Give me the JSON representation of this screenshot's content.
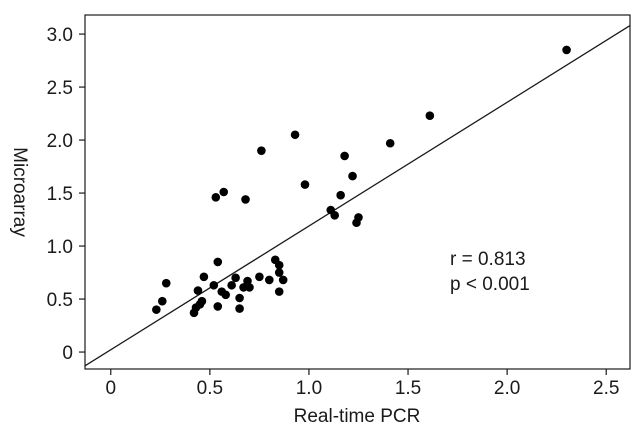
{
  "chart_data": {
    "type": "scatter",
    "xlabel": "Real-time PCR",
    "ylabel": "Microarray",
    "xlim": [
      -0.13,
      2.62
    ],
    "ylim": [
      -0.16,
      3.18
    ],
    "xticks": [
      0,
      0.5,
      1.0,
      1.5,
      2.0,
      2.5
    ],
    "xtick_labels": [
      "0",
      "0.5",
      "1.0",
      "1.5",
      "2.0",
      "2.5"
    ],
    "yticks": [
      0,
      0.5,
      1.0,
      1.5,
      2.0,
      2.5,
      3.0
    ],
    "ytick_labels": [
      "0",
      "0.5",
      "1.0",
      "1.5",
      "2.0",
      "2.5",
      "3.0"
    ],
    "grid": false,
    "reference_line": {
      "type": "identity",
      "from": [
        -0.13,
        -0.13
      ],
      "to": [
        2.62,
        3.08
      ]
    },
    "annotations": [
      "r = 0.813",
      "p < 0.001"
    ],
    "points": [
      {
        "x": 0.23,
        "y": 0.4
      },
      {
        "x": 0.26,
        "y": 0.48
      },
      {
        "x": 0.28,
        "y": 0.65
      },
      {
        "x": 0.42,
        "y": 0.37
      },
      {
        "x": 0.43,
        "y": 0.42
      },
      {
        "x": 0.44,
        "y": 0.58
      },
      {
        "x": 0.45,
        "y": 0.45
      },
      {
        "x": 0.46,
        "y": 0.48
      },
      {
        "x": 0.47,
        "y": 0.71
      },
      {
        "x": 0.52,
        "y": 0.63
      },
      {
        "x": 0.53,
        "y": 1.46
      },
      {
        "x": 0.54,
        "y": 0.85
      },
      {
        "x": 0.54,
        "y": 0.43
      },
      {
        "x": 0.56,
        "y": 0.57
      },
      {
        "x": 0.57,
        "y": 1.51
      },
      {
        "x": 0.58,
        "y": 0.54
      },
      {
        "x": 0.61,
        "y": 0.63
      },
      {
        "x": 0.63,
        "y": 0.7
      },
      {
        "x": 0.65,
        "y": 0.51
      },
      {
        "x": 0.65,
        "y": 0.41
      },
      {
        "x": 0.67,
        "y": 0.61
      },
      {
        "x": 0.68,
        "y": 1.44
      },
      {
        "x": 0.69,
        "y": 0.67
      },
      {
        "x": 0.7,
        "y": 0.61
      },
      {
        "x": 0.75,
        "y": 0.71
      },
      {
        "x": 0.76,
        "y": 1.9
      },
      {
        "x": 0.8,
        "y": 0.68
      },
      {
        "x": 0.83,
        "y": 0.87
      },
      {
        "x": 0.85,
        "y": 0.82
      },
      {
        "x": 0.85,
        "y": 0.75
      },
      {
        "x": 0.85,
        "y": 0.57
      },
      {
        "x": 0.87,
        "y": 0.68
      },
      {
        "x": 0.93,
        "y": 2.05
      },
      {
        "x": 0.98,
        "y": 1.58
      },
      {
        "x": 1.11,
        "y": 1.34
      },
      {
        "x": 1.13,
        "y": 1.29
      },
      {
        "x": 1.16,
        "y": 1.48
      },
      {
        "x": 1.18,
        "y": 1.85
      },
      {
        "x": 1.22,
        "y": 1.66
      },
      {
        "x": 1.24,
        "y": 1.22
      },
      {
        "x": 1.25,
        "y": 1.27
      },
      {
        "x": 1.41,
        "y": 1.97
      },
      {
        "x": 1.61,
        "y": 2.23
      },
      {
        "x": 2.3,
        "y": 2.85
      }
    ]
  }
}
